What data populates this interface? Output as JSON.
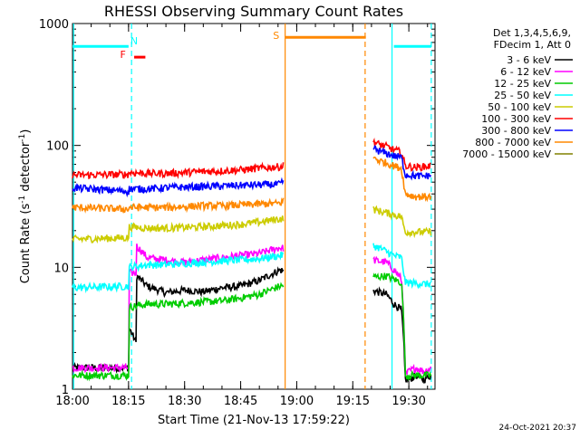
{
  "chart_data": {
    "type": "line",
    "title": "RHESSI Observing Summary Count Rates",
    "xlabel": "Start Time (21-Nov-13 17:59:22)",
    "ylabel_main": "Count Rate (s",
    "ylabel_sup1": "-1",
    "ylabel_mid": " detector",
    "ylabel_sup2": "-1",
    "ylabel_end": ")",
    "y_scale": "log",
    "ylim": [
      1,
      1000
    ],
    "xlim_minutes": [
      0,
      97
    ],
    "x_ticks": [
      {
        "minute": 0,
        "label": "18:00"
      },
      {
        "minute": 15,
        "label": "18:15"
      },
      {
        "minute": 30,
        "label": "18:30"
      },
      {
        "minute": 45,
        "label": "18:45"
      },
      {
        "minute": 60,
        "label": "19:00"
      },
      {
        "minute": 75,
        "label": "19:15"
      },
      {
        "minute": 90,
        "label": "19:30"
      }
    ],
    "y_ticks": [
      {
        "value": 1,
        "label": "1"
      },
      {
        "value": 10,
        "label": "10"
      },
      {
        "value": 100,
        "label": "100"
      },
      {
        "value": 1000,
        "label": "1000"
      }
    ],
    "legend_header": [
      "Det 1,3,4,5,6,9,",
      "FDecim 1, Att 0"
    ],
    "legend_position": "right",
    "date_stamp": "24-Oct-2021 20:37",
    "data_gap_minutes": [
      58,
      83
    ],
    "series": [
      {
        "name": "3 - 6 keV",
        "color": "#000000",
        "x": [
          0,
          15,
          15.1,
          17,
          17.1,
          20,
          25,
          30,
          35,
          40,
          45,
          50,
          55.5,
          84,
          86,
          88,
          89,
          90,
          92,
          94,
          96
        ],
        "y": [
          1.5,
          1.5,
          3.2,
          2.4,
          8.5,
          7.0,
          6.2,
          6.5,
          6.3,
          6.8,
          7.0,
          7.8,
          9.5,
          6.0,
          5.0,
          4.5,
          1.2,
          1.2,
          1.3,
          1.2,
          1.3
        ]
      },
      {
        "name": "6 - 12 keV",
        "color": "#ff00ff",
        "x": [
          0,
          15,
          15.1,
          17,
          17.1,
          20,
          25,
          30,
          35,
          40,
          45,
          50,
          55.5,
          84,
          86,
          88,
          89,
          90,
          92,
          94,
          96
        ],
        "y": [
          1.5,
          1.5,
          9.0,
          9.0,
          15.0,
          12.0,
          11.5,
          11.0,
          11.5,
          12.0,
          12.5,
          13.0,
          14.5,
          11.0,
          9.5,
          8.0,
          1.3,
          1.4,
          1.5,
          1.4,
          1.5
        ]
      },
      {
        "name": "12 - 25 keV",
        "color": "#00cc00",
        "x": [
          0,
          15,
          15.1,
          20,
          25,
          30,
          35,
          40,
          45,
          50,
          55.5,
          84,
          86,
          88,
          89,
          90,
          92,
          94,
          96
        ],
        "y": [
          1.3,
          1.3,
          4.7,
          5.0,
          5.0,
          5.1,
          5.2,
          5.3,
          5.6,
          6.0,
          7.0,
          8.5,
          8.0,
          7.5,
          1.3,
          1.3,
          1.3,
          1.3,
          1.3
        ]
      },
      {
        "name": "25 - 50 keV",
        "color": "#00ffff",
        "x": [
          0,
          15,
          15.1,
          20,
          25,
          30,
          35,
          40,
          45,
          50,
          55.5,
          80.5,
          82,
          84,
          86,
          88,
          89,
          92,
          94,
          96
        ],
        "y": [
          6.8,
          7.0,
          10.0,
          10.5,
          10.5,
          10.8,
          11.0,
          11.3,
          11.5,
          11.8,
          12.5,
          15.0,
          14.5,
          13.5,
          12.5,
          12.0,
          7.5,
          7.4,
          7.3,
          7.3
        ]
      },
      {
        "name": "50 - 100 keV",
        "color": "#cccc00",
        "x": [
          0,
          15,
          15.1,
          20,
          25,
          30,
          35,
          40,
          45,
          50,
          55.5,
          80.5,
          82,
          84,
          86,
          88,
          89,
          92,
          94,
          96
        ],
        "y": [
          17.0,
          17.5,
          21.5,
          21.0,
          21.0,
          21.2,
          21.5,
          22.0,
          22.5,
          23.5,
          25.0,
          30.0,
          29.0,
          28.0,
          27.0,
          26.0,
          19.5,
          19.5,
          19.5,
          19.5
        ]
      },
      {
        "name": "100 - 300 keV",
        "color": "#ff0000",
        "x": [
          0,
          15,
          15.1,
          20,
          25,
          30,
          35,
          40,
          45,
          50,
          55.5,
          80.5,
          82,
          84,
          86,
          88,
          89,
          92,
          94,
          96
        ],
        "y": [
          57,
          58,
          60,
          59,
          59,
          60,
          61,
          62,
          63,
          65,
          67,
          108,
          102,
          98,
          92,
          88,
          68,
          66,
          67,
          68
        ]
      },
      {
        "name": "300 - 800 keV",
        "color": "#0000ff",
        "x": [
          0,
          15,
          15.1,
          20,
          25,
          30,
          35,
          40,
          45,
          50,
          55.5,
          80.5,
          82,
          84,
          86,
          88,
          89,
          92,
          94,
          96
        ],
        "y": [
          45,
          42,
          44,
          44,
          45,
          45.5,
          46,
          46.5,
          47,
          47.5,
          48,
          95,
          90,
          86,
          82,
          80,
          58,
          56,
          56,
          57
        ]
      },
      {
        "name": "800 - 7000 keV",
        "color": "#ff8800",
        "x": [
          0,
          15,
          15.1,
          20,
          25,
          30,
          35,
          40,
          45,
          50,
          55.5,
          80.5,
          82,
          84,
          86,
          88,
          89,
          92,
          94,
          96
        ],
        "y": [
          31,
          30,
          31,
          31,
          31,
          31.5,
          32,
          32,
          32.5,
          33,
          33.5,
          80,
          75,
          72,
          68,
          65,
          40,
          38,
          38,
          38
        ]
      },
      {
        "name": "7000 - 15000 keV",
        "color": "#808000",
        "x": [],
        "y": []
      }
    ],
    "annotations": [
      {
        "text": "N",
        "color": "#00ffff",
        "minute": 16.5,
        "value": 720
      },
      {
        "text": "F",
        "color": "#ff0000",
        "minute": 13.5,
        "value": 560
      },
      {
        "text": "S",
        "color": "#ff8800",
        "minute": 54.5,
        "value": 800
      }
    ],
    "status_bars": [
      {
        "name": "N",
        "color": "#00ffff",
        "minute_start": 0,
        "minute_end": 15,
        "value": 650
      },
      {
        "name": "N",
        "color": "#00ffff",
        "minute_start": 86,
        "minute_end": 96,
        "value": 650
      },
      {
        "name": "F",
        "color": "#ff0000",
        "minute_start": 16.5,
        "minute_end": 19.5,
        "value": 530
      },
      {
        "name": "S",
        "color": "#ff8800",
        "minute_start": 57,
        "minute_end": 78.5,
        "value": 770
      }
    ],
    "vertical_markers": [
      {
        "kind": "solid",
        "color": "#00ffff",
        "minute": 0.3
      },
      {
        "kind": "dashed",
        "color": "#00ffff",
        "minute": 15.8
      },
      {
        "kind": "solid",
        "color": "#ff8800",
        "minute": 56.9
      },
      {
        "kind": "dashed",
        "color": "#ff8800",
        "minute": 78.3
      },
      {
        "kind": "solid",
        "color": "#00ffff",
        "minute": 85.5
      },
      {
        "kind": "dashed",
        "color": "#00ffff",
        "minute": 96.0
      }
    ]
  }
}
